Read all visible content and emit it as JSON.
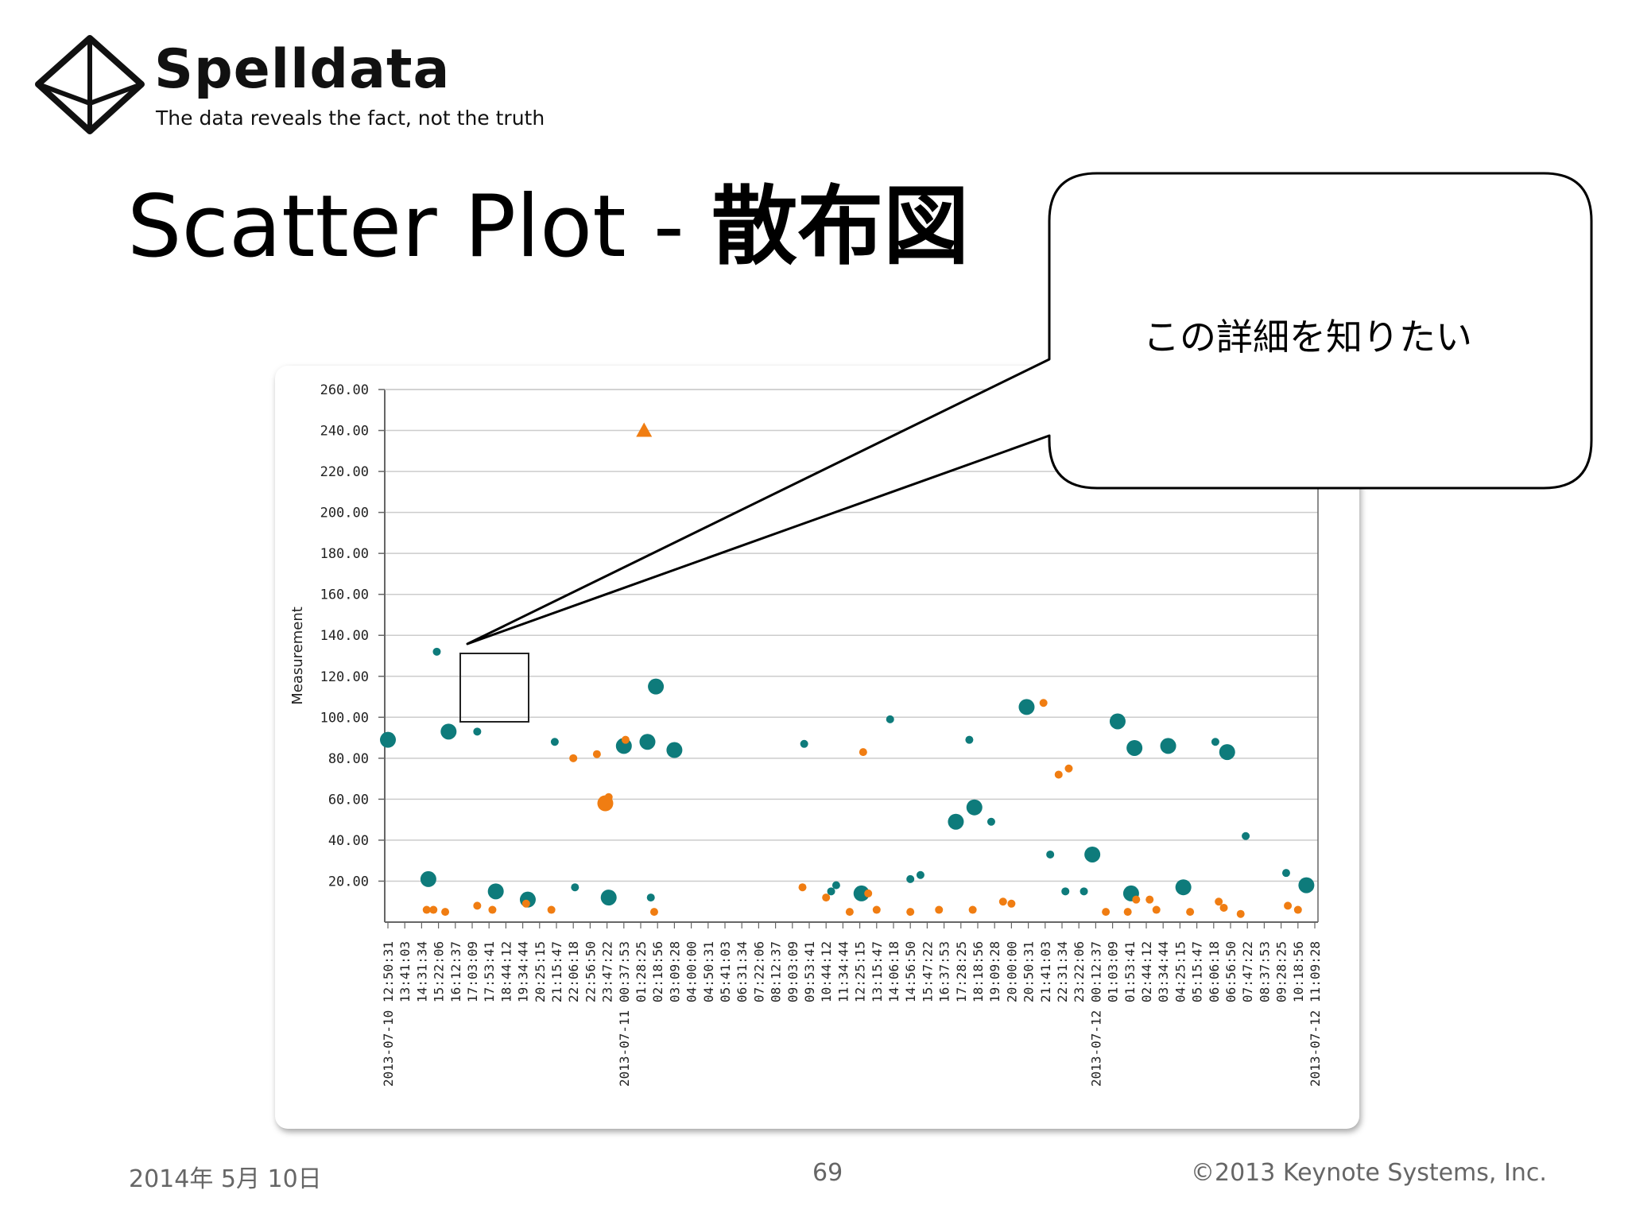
{
  "logo": {
    "name": "Spelldata",
    "tagline": "The data reveals the fact, not the truth",
    "icon": "diamond-icon"
  },
  "slide": {
    "title_en": "Scatter Plot - ",
    "title_jp": "散布図",
    "callout_text": "この詳細を知りたい"
  },
  "footer": {
    "date": "2014年 5月 10日",
    "page": "69",
    "copyright": "©2013 Keynote Systems, Inc."
  },
  "colors": {
    "teal": "#0e7b7b",
    "orange": "#f07d12",
    "grid": "#cccccc",
    "axis": "#666666"
  },
  "chart_data": {
    "type": "scatter",
    "title": "",
    "xlabel": "",
    "ylabel": "Measurement",
    "ylim": [
      0,
      260
    ],
    "yticks": [
      "260.00",
      "240.00",
      "220.00",
      "200.00",
      "180.00",
      "160.00",
      "140.00",
      "120.00",
      "100.00",
      "80.00",
      "60.00",
      "40.00",
      "20.00"
    ],
    "ytick_values": [
      260,
      240,
      220,
      200,
      180,
      160,
      140,
      120,
      100,
      80,
      60,
      40,
      20
    ],
    "xticks": [
      "2013-07-10 12:50:31",
      "13:41:03",
      "14:31:34",
      "15:22:06",
      "16:12:37",
      "17:03:09",
      "17:53:41",
      "18:44:12",
      "19:34:44",
      "20:25:15",
      "21:15:47",
      "22:06:18",
      "22:56:50",
      "23:47:22",
      "2013-07-11 00:37:53",
      "01:28:25",
      "02:18:56",
      "03:09:28",
      "04:00:00",
      "04:50:31",
      "05:41:03",
      "06:31:34",
      "07:22:06",
      "08:12:37",
      "09:03:09",
      "09:53:41",
      "10:44:12",
      "11:34:44",
      "12:25:15",
      "13:15:47",
      "14:06:18",
      "14:56:50",
      "15:47:22",
      "16:37:53",
      "17:28:25",
      "18:18:56",
      "19:09:28",
      "20:00:00",
      "20:50:31",
      "21:41:03",
      "22:31:34",
      "23:22:06",
      "2013-07-12 00:12:37",
      "01:03:09",
      "01:53:41",
      "02:44:12",
      "03:34:44",
      "04:25:15",
      "05:15:47",
      "06:06:18",
      "06:56:50",
      "07:47:22",
      "08:37:53",
      "09:28:25",
      "10:18:56",
      "2013-07-12 11:09:28"
    ],
    "grid": true,
    "series": [
      {
        "color": "#0e7b7b",
        "points": [
          [
            0.0,
            89,
            3
          ],
          [
            2.4,
            21,
            3
          ],
          [
            2.9,
            132,
            1
          ],
          [
            3.6,
            93,
            3
          ],
          [
            5.3,
            93,
            1
          ],
          [
            6.4,
            15,
            3
          ],
          [
            8.3,
            11,
            3
          ],
          [
            9.9,
            88,
            1
          ],
          [
            11.1,
            17,
            1
          ],
          [
            13.1,
            12,
            3
          ],
          [
            14.0,
            86,
            3
          ],
          [
            15.4,
            88,
            3
          ],
          [
            15.6,
            12,
            1
          ],
          [
            15.9,
            115,
            3
          ],
          [
            17.0,
            84,
            3
          ],
          [
            24.7,
            87,
            1
          ],
          [
            26.3,
            15,
            1
          ],
          [
            26.6,
            18,
            1
          ],
          [
            28.1,
            14,
            3
          ],
          [
            29.8,
            99,
            1
          ],
          [
            31.0,
            21,
            1
          ],
          [
            31.6,
            23,
            1
          ],
          [
            33.7,
            49,
            3
          ],
          [
            34.5,
            89,
            1
          ],
          [
            34.8,
            56,
            3
          ],
          [
            35.8,
            49,
            1
          ],
          [
            37.9,
            105,
            3
          ],
          [
            39.3,
            33,
            1
          ],
          [
            40.2,
            15,
            1
          ],
          [
            41.3,
            15,
            1
          ],
          [
            41.8,
            33,
            3
          ],
          [
            43.3,
            98,
            3
          ],
          [
            44.1,
            14,
            3
          ],
          [
            44.3,
            85,
            3
          ],
          [
            46.3,
            86,
            3
          ],
          [
            47.2,
            17,
            3
          ],
          [
            49.1,
            88,
            1
          ],
          [
            49.8,
            83,
            3
          ],
          [
            50.9,
            42,
            1
          ],
          [
            53.3,
            24,
            1
          ],
          [
            54.5,
            18,
            3
          ]
        ]
      },
      {
        "color": "#f07d12",
        "points": [
          [
            2.3,
            6,
            1
          ],
          [
            2.7,
            6,
            1
          ],
          [
            3.4,
            5,
            1
          ],
          [
            5.3,
            8,
            1
          ],
          [
            6.2,
            6,
            1
          ],
          [
            8.2,
            9,
            1
          ],
          [
            9.7,
            6,
            1
          ],
          [
            11.0,
            80,
            1
          ],
          [
            12.4,
            82,
            1
          ],
          [
            12.9,
            58,
            3
          ],
          [
            13.1,
            61,
            1
          ],
          [
            14.1,
            89,
            1
          ],
          [
            15.8,
            5,
            1
          ],
          [
            24.6,
            17,
            1
          ],
          [
            26.0,
            12,
            1
          ],
          [
            27.4,
            5,
            1
          ],
          [
            28.2,
            83,
            1
          ],
          [
            28.5,
            14,
            1
          ],
          [
            29.0,
            6,
            1
          ],
          [
            31.0,
            5,
            1
          ],
          [
            32.7,
            6,
            1
          ],
          [
            34.7,
            6,
            1
          ],
          [
            36.5,
            10,
            1
          ],
          [
            37.0,
            9,
            1
          ],
          [
            38.9,
            107,
            1
          ],
          [
            39.8,
            72,
            1
          ],
          [
            40.4,
            75,
            1
          ],
          [
            42.6,
            5,
            1
          ],
          [
            43.9,
            5,
            1
          ],
          [
            44.4,
            11,
            1
          ],
          [
            45.2,
            11,
            1
          ],
          [
            45.6,
            6,
            1
          ],
          [
            47.6,
            5,
            1
          ],
          [
            49.3,
            10,
            1
          ],
          [
            49.6,
            7,
            1
          ],
          [
            50.6,
            4,
            1
          ],
          [
            53.4,
            8,
            1
          ],
          [
            54.0,
            6,
            1
          ]
        ]
      }
    ],
    "annotations": [
      {
        "type": "triangle",
        "x": 15.2,
        "y": 240,
        "color": "#f07d12"
      }
    ]
  }
}
